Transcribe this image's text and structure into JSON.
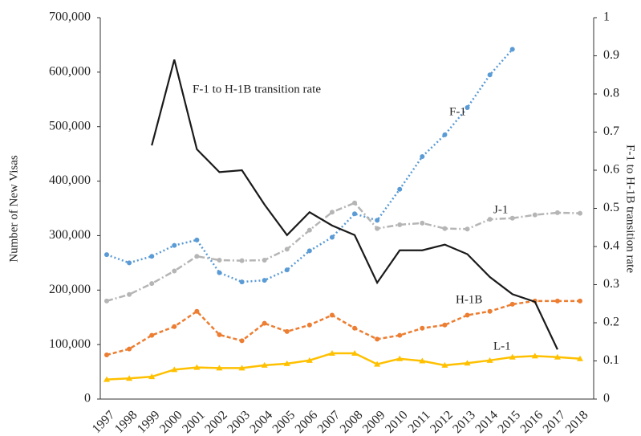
{
  "chart_data": {
    "type": "line",
    "y_label": "Number of New Visas",
    "y2_label": "F-1 to H-1B transition rate",
    "categories": [
      "1997",
      "1998",
      "1999",
      "2000",
      "2001",
      "2002",
      "2003",
      "2004",
      "2005",
      "2006",
      "2007",
      "2008",
      "2009",
      "2010",
      "2011",
      "2012",
      "2013",
      "2014",
      "2015",
      "2016",
      "2017",
      "2018"
    ],
    "series": [
      {
        "name": "F-1",
        "color": "#5b9bd5",
        "dash": "2,3",
        "marker": "circle",
        "values": [
          265000,
          250000,
          262000,
          282000,
          292000,
          232000,
          215000,
          218000,
          237000,
          272000,
          297000,
          340000,
          328000,
          385000,
          445000,
          485000,
          535000,
          595000,
          642000,
          null,
          null,
          null
        ]
      },
      {
        "name": "J-1",
        "color": "#b5b5b5",
        "dash": "8,3,2,3",
        "marker": "circle",
        "values": [
          180000,
          192000,
          212000,
          235000,
          262000,
          255000,
          254000,
          255000,
          275000,
          310000,
          343000,
          360000,
          313000,
          320000,
          323000,
          313000,
          312000,
          330000,
          332000,
          338000,
          342000,
          341000
        ]
      },
      {
        "name": "H-1B",
        "color": "#ed7d31",
        "dash": "5,3",
        "marker": "circle",
        "values": [
          81000,
          92000,
          117000,
          133000,
          161000,
          118000,
          107000,
          139000,
          124000,
          136000,
          154000,
          130000,
          110000,
          117000,
          130000,
          136000,
          154000,
          161000,
          174000,
          180000,
          180000,
          180000
        ]
      },
      {
        "name": "L-1",
        "color": "#ffc000",
        "dash": "",
        "marker": "triangle",
        "values": [
          36000,
          38000,
          41000,
          54000,
          58000,
          57000,
          57000,
          62000,
          65000,
          71000,
          84000,
          84000,
          64000,
          74000,
          70000,
          62000,
          66000,
          71000,
          77000,
          79000,
          77000,
          74000
        ]
      },
      {
        "name": "F-1 to H-1B transition rate",
        "color": "#1a1a1a",
        "dash": "",
        "marker": "none",
        "axis": "y2",
        "values": [
          null,
          null,
          0.665,
          0.89,
          0.655,
          0.595,
          0.6,
          0.51,
          0.43,
          0.49,
          0.455,
          0.43,
          0.305,
          0.39,
          0.39,
          0.405,
          0.38,
          0.32,
          0.275,
          0.255,
          0.13,
          null
        ]
      }
    ],
    "ylim": [
      0,
      700000
    ],
    "yticks": [
      0,
      {
        "value": 100000,
        "label": "100,000"
      },
      {
        "value": 200000,
        "label": "200,000"
      },
      {
        "value": 300000,
        "label": "300,000"
      },
      {
        "value": 400000,
        "label": "400,000"
      },
      {
        "value": 500000,
        "label": "500,000"
      },
      {
        "value": 600000,
        "label": "600,000"
      },
      {
        "value": 700000,
        "label": "700,000"
      }
    ],
    "y2lim": [
      0,
      1
    ],
    "y2ticks": [
      0,
      0.1,
      0.2,
      0.3,
      0.4,
      0.5,
      0.6,
      0.7,
      0.8,
      0.9,
      1
    ],
    "grid": false
  }
}
